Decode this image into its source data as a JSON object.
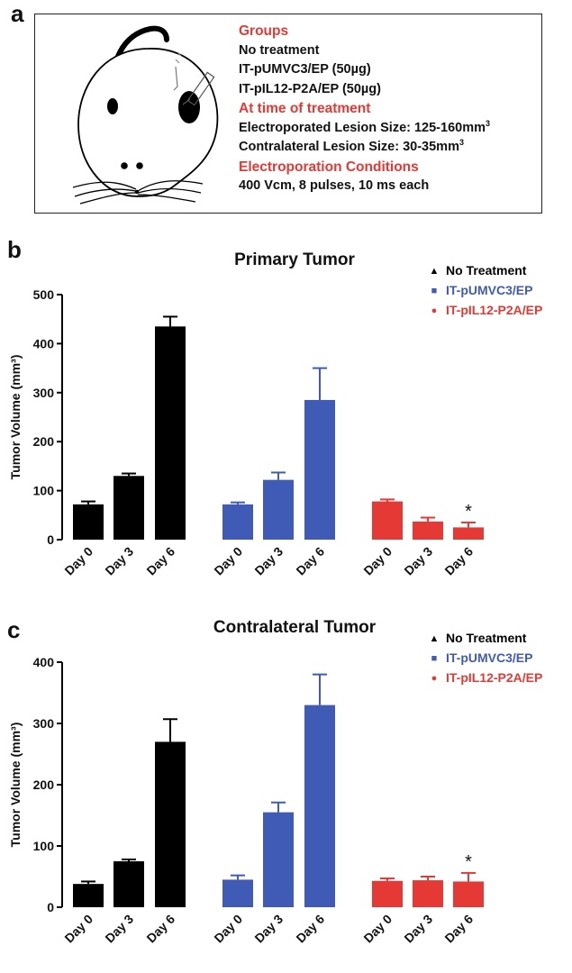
{
  "panel_labels": {
    "a": "a",
    "b": "b",
    "c": "c"
  },
  "info_box": {
    "groups_heading": "Groups",
    "groups": [
      "No treatment",
      "IT-pUMVC3/EP (50µg)",
      "IT-pIL12-P2A/EP (50µg)"
    ],
    "time_heading": "At time of treatment",
    "electroporated_label": "Electroporated Lesion Size: 125-160mm",
    "contralateral_label": "Contralateral Lesion Size: 30-35mm",
    "superscript": "3",
    "conditions_heading": "Electroporation Conditions",
    "conditions": "400 Vcm, 8 pulses, 10 ms each"
  },
  "colors": {
    "no_treatment": "#000000",
    "pumvc3": "#3f5bb5",
    "pil12": "#e53935",
    "heading_red": "#e53935"
  },
  "chart_data": [
    {
      "type": "bar",
      "title": "Primary Tumor",
      "ylabel": "Tumor Volume (mm³)",
      "ylim": [
        0,
        500
      ],
      "yticks": [
        "0",
        "100",
        "200",
        "300",
        "400",
        "500"
      ],
      "categories": [
        "Day 0",
        "Day 3",
        "Day 6"
      ],
      "series": [
        {
          "name": "No Treatment",
          "marker": "▲",
          "color": "#000000",
          "values": [
            72,
            130,
            435
          ],
          "errors": [
            6,
            5,
            20
          ]
        },
        {
          "name": "IT-pUMVC3/EP",
          "marker": "■",
          "color": "#3f5bb5",
          "values": [
            72,
            122,
            285
          ],
          "errors": [
            4,
            15,
            65
          ]
        },
        {
          "name": "IT-pIL12-P2A/EP",
          "marker": "●",
          "color": "#e53935",
          "values": [
            78,
            37,
            25
          ],
          "errors": [
            4,
            8,
            10
          ]
        }
      ],
      "annotations": [
        {
          "series": 2,
          "category": 2,
          "text": "*"
        }
      ]
    },
    {
      "type": "bar",
      "title": "Contralateral Tumor",
      "ylabel": "Tumor Volume (mm³)",
      "ylim": [
        0,
        400
      ],
      "yticks": [
        "0",
        "100",
        "200",
        "300",
        "400"
      ],
      "categories": [
        "Day 0",
        "Day 3",
        "Day 6"
      ],
      "series": [
        {
          "name": "No Treatment",
          "marker": "▲",
          "color": "#000000",
          "values": [
            38,
            75,
            270
          ],
          "errors": [
            4,
            3,
            37
          ]
        },
        {
          "name": "IT-pUMVC3/EP",
          "marker": "■",
          "color": "#3f5bb5",
          "values": [
            45,
            155,
            330
          ],
          "errors": [
            7,
            16,
            50
          ]
        },
        {
          "name": "IT-pIL12-P2A/EP",
          "marker": "●",
          "color": "#e53935",
          "values": [
            43,
            44,
            42
          ],
          "errors": [
            4,
            6,
            14
          ]
        }
      ],
      "annotations": [
        {
          "series": 2,
          "category": 2,
          "text": "*"
        }
      ]
    }
  ]
}
